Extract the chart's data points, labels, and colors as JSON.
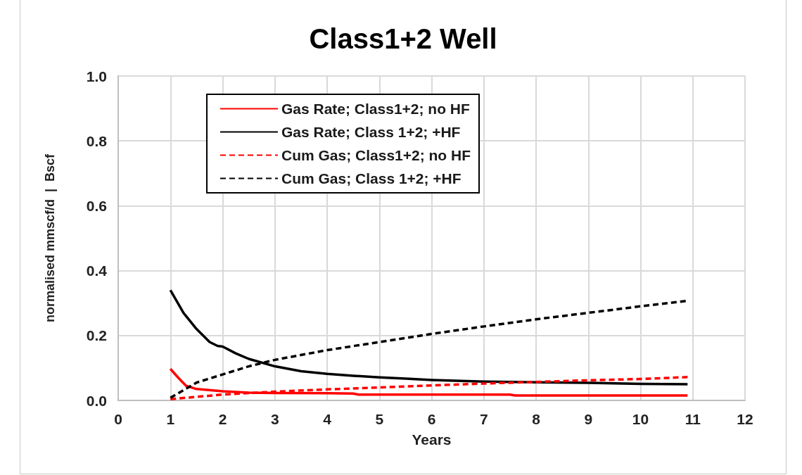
{
  "chart_data": {
    "type": "line",
    "title": "Class1+2 Well",
    "xlabel": "Years",
    "ylabel": "normalised mmscf/d  |  Bscf",
    "xlim": [
      0,
      12
    ],
    "xticks": [
      0,
      1,
      2,
      3,
      4,
      5,
      6,
      7,
      8,
      9,
      10,
      11,
      12
    ],
    "ylim": [
      0,
      1
    ],
    "yticks": [
      {
        "value": 0,
        "label": "0.0"
      },
      0.2,
      0.4,
      0.6,
      0.8,
      {
        "value": 1,
        "label": "1.0"
      }
    ],
    "grid": true,
    "legend": "top left",
    "marker": "none",
    "series": [
      {
        "name": "Gas Rate; Class1+2; no HF",
        "color": "#ff0000",
        "line_style": "solid",
        "x": [
          1,
          1.15,
          1.3,
          1.5,
          2,
          2.5,
          3,
          4,
          4.5,
          4.6,
          6,
          7.5,
          7.6,
          10.9
        ],
        "values": [
          0.097,
          0.07,
          0.045,
          0.035,
          0.028,
          0.024,
          0.023,
          0.022,
          0.021,
          0.018,
          0.018,
          0.018,
          0.015,
          0.015
        ]
      },
      {
        "name": "Gas Rate; Class 1+2; +HF",
        "color": "#000000",
        "line_style": "solid",
        "x": [
          1,
          1.25,
          1.5,
          1.75,
          1.9,
          2,
          2.25,
          2.5,
          3,
          3.5,
          4,
          4.5,
          5,
          5.5,
          6,
          7,
          8,
          9,
          10,
          10.9
        ],
        "values": [
          0.34,
          0.27,
          0.22,
          0.18,
          0.168,
          0.166,
          0.145,
          0.128,
          0.105,
          0.09,
          0.082,
          0.076,
          0.071,
          0.067,
          0.063,
          0.058,
          0.056,
          0.054,
          0.051,
          0.05
        ]
      },
      {
        "name": "Cum Gas; Class1+2; no HF",
        "color": "#ff0000",
        "line_style": "dashed",
        "x": [
          1,
          2,
          3,
          4,
          5,
          6,
          7,
          8,
          9,
          10,
          10.9
        ],
        "values": [
          0.004,
          0.018,
          0.027,
          0.034,
          0.04,
          0.046,
          0.052,
          0.057,
          0.062,
          0.066,
          0.072
        ]
      },
      {
        "name": "Cum Gas; Class 1+2; +HF",
        "color": "#000000",
        "line_style": "dashed",
        "x": [
          1,
          1.5,
          2,
          2.5,
          3,
          4,
          5,
          6,
          7,
          8,
          9,
          10,
          10.9
        ],
        "values": [
          0.008,
          0.055,
          0.08,
          0.105,
          0.125,
          0.155,
          0.18,
          0.205,
          0.228,
          0.25,
          0.27,
          0.29,
          0.307
        ]
      }
    ]
  }
}
